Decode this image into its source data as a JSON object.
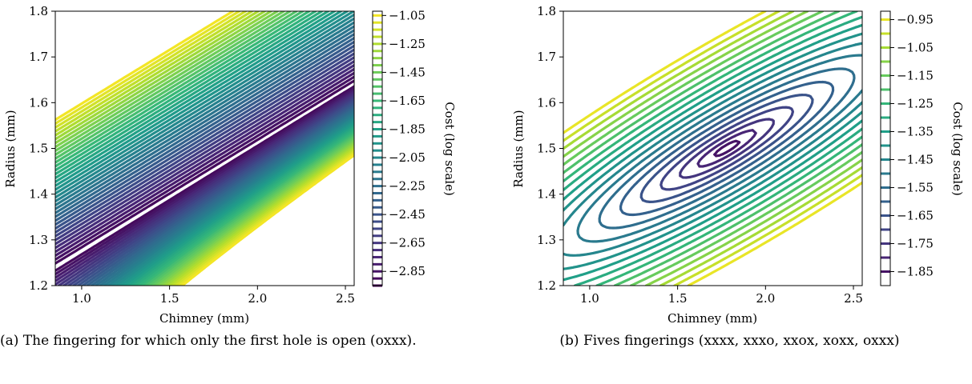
{
  "chart_data": [
    {
      "type": "contour",
      "xlabel": "Chimney (mm)",
      "ylabel": "Radius (mm)",
      "xlim": [
        0.85,
        2.55
      ],
      "ylim": [
        1.2,
        1.8
      ],
      "x_ticks": [
        1.0,
        1.5,
        2.0,
        2.5
      ],
      "y_ticks": [
        1.2,
        1.3,
        1.4,
        1.5,
        1.6,
        1.7,
        1.8
      ],
      "colorbar": {
        "label": "Cost (log scale)",
        "ticks": [
          -1.05,
          -1.25,
          -1.45,
          -1.65,
          -1.85,
          -2.05,
          -2.25,
          -2.45,
          -2.65,
          -2.85
        ],
        "range": [
          -2.95,
          -1.02
        ],
        "colormap": "viridis"
      },
      "contour_levels": {
        "min": -2.95,
        "max": -1.05,
        "step": 0.05
      },
      "minimum_valley": "narrow diagonal band from (0.85, 1.24) to (2.55, 1.64)",
      "caption": "(a) The fingering for which only the first hole is open (oxxx)."
    },
    {
      "type": "contour",
      "xlabel": "Chimney (mm)",
      "ylabel": "Radius (mm)",
      "xlim": [
        0.85,
        2.55
      ],
      "ylim": [
        1.2,
        1.8
      ],
      "x_ticks": [
        1.0,
        1.5,
        2.0,
        2.5
      ],
      "y_ticks": [
        1.2,
        1.3,
        1.4,
        1.5,
        1.6,
        1.7,
        1.8
      ],
      "colorbar": {
        "label": "Cost (log scale)",
        "ticks": [
          -0.95,
          -1.05,
          -1.15,
          -1.25,
          -1.35,
          -1.45,
          -1.55,
          -1.65,
          -1.75,
          -1.85
        ],
        "range": [
          -1.9,
          -0.92
        ],
        "colormap": "viridis"
      },
      "contour_levels": {
        "min": -1.85,
        "max": -0.95,
        "step": 0.05
      },
      "minimum": {
        "x": 1.78,
        "y": 1.5
      },
      "caption": "(b) Fives fingerings (xxxx, xxxo, xxox, xoxx, oxxx)"
    }
  ]
}
